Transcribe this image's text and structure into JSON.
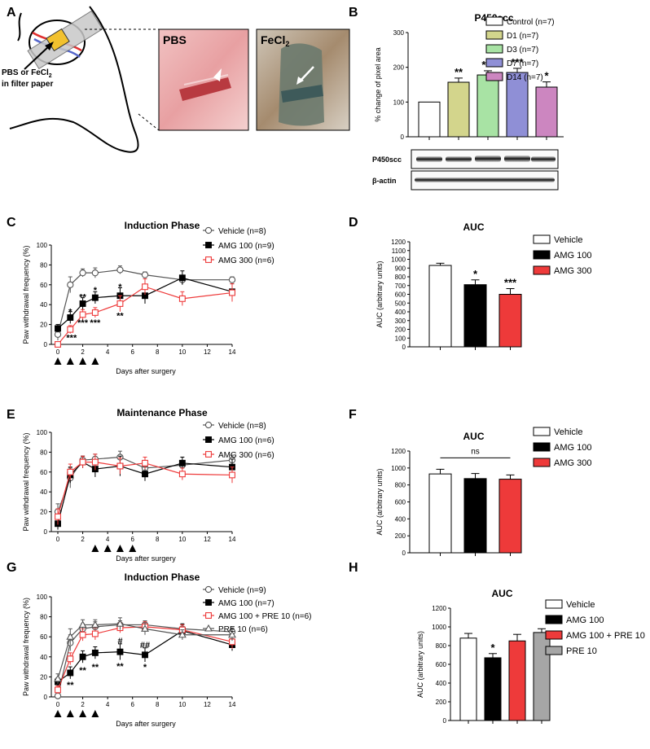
{
  "panel_labels": [
    "A",
    "B",
    "C",
    "D",
    "E",
    "F",
    "G",
    "H"
  ],
  "panel_a": {
    "filter_label_line1": "PBS or FeCl",
    "filter_label_sub": "2",
    "filter_label_line2": "in filter paper",
    "photo1_label": "PBS",
    "photo2_label": "FeCl",
    "photo2_label_sub": "2"
  },
  "panel_b": {
    "blot_labels": [
      "P450scc",
      "β-actin"
    ]
  },
  "colors": {
    "vehicle": "#ffffff",
    "amg100": "#000000",
    "amg300": "#ee3a3a",
    "pre10": "#a6a6a6",
    "d1": "#d3d58c",
    "d3": "#a8e3a4",
    "d7": "#8f8fd6",
    "d14": "#cc86c0"
  },
  "chart_data": [
    {
      "id": "B",
      "type": "bar",
      "title": "P450scc",
      "ylabel": "% change of pixel area",
      "xlabel": "",
      "ylim": [
        0,
        300
      ],
      "yticks": [
        0,
        100,
        200,
        300
      ],
      "categories": [
        "Control (n=7)",
        "D1 (n=7)",
        "D3 (n=7)",
        "D7 (n=7)",
        "D14 (n=7)"
      ],
      "values": [
        100,
        157,
        178,
        185,
        143
      ],
      "errors": [
        0,
        12,
        12,
        12,
        15
      ],
      "fills": [
        "#ffffff",
        "#d3d58c",
        "#a8e3a4",
        "#8f8fd6",
        "#cc86c0"
      ],
      "annotations": [
        "",
        "**",
        "***",
        "***",
        "*"
      ],
      "legend": [
        "Control (n=7)",
        "D1 (n=7)",
        "D3 (n=7)",
        "D7 (n=7)",
        "D14 (n=7)"
      ]
    },
    {
      "id": "C",
      "type": "line",
      "title": "Induction Phase",
      "ylabel": "Paw withdrawal frequency (%)",
      "xlabel": "Days after surgery",
      "xlim": [
        0,
        14
      ],
      "xticks": [
        0,
        2,
        4,
        6,
        8,
        10,
        12,
        14
      ],
      "ylim": [
        0,
        100
      ],
      "yticks": [
        0,
        20,
        40,
        60,
        80,
        100
      ],
      "arrow_days": [
        0,
        1,
        2,
        3
      ],
      "series": [
        {
          "name": "Vehicle (n=8)",
          "marker": "circle",
          "color": "#555555",
          "fill": "#ffffff",
          "x": [
            0,
            1,
            2,
            3,
            5,
            7,
            10,
            14
          ],
          "y": [
            10,
            60,
            72,
            72,
            75,
            70,
            65,
            65
          ],
          "err": [
            6,
            8,
            4,
            5,
            4,
            3,
            4,
            3
          ]
        },
        {
          "name": "AMG 100 (n=9)",
          "marker": "square",
          "color": "#000000",
          "fill": "#000000",
          "x": [
            0,
            1,
            2,
            3,
            5,
            7,
            10,
            14
          ],
          "y": [
            16,
            27,
            41,
            47,
            49,
            49,
            67,
            53
          ],
          "err": [
            4,
            6,
            6,
            6,
            8,
            8,
            7,
            8
          ]
        },
        {
          "name": "AMG 300 (n=6)",
          "marker": "square",
          "color": "#ee3a3a",
          "fill": "#ffffff",
          "x": [
            0,
            1,
            2,
            3,
            5,
            7,
            10,
            14
          ],
          "y": [
            0,
            15,
            30,
            32,
            41,
            58,
            46,
            52
          ],
          "err": [
            1,
            4,
            5,
            5,
            8,
            8,
            7,
            9
          ]
        }
      ],
      "sig_labels": [
        {
          "text": "*",
          "x": 1,
          "y": 33
        },
        {
          "text": "***",
          "x": 1.1,
          "y": 7
        },
        {
          "text": "**",
          "x": 2,
          "y": 48
        },
        {
          "text": "***",
          "x": 2,
          "y": 22
        },
        {
          "text": "*",
          "x": 3,
          "y": 55
        },
        {
          "text": "***",
          "x": 3,
          "y": 22
        },
        {
          "text": "*",
          "x": 5,
          "y": 58
        },
        {
          "text": "**",
          "x": 5,
          "y": 29
        }
      ]
    },
    {
      "id": "D",
      "type": "bar",
      "title": "AUC",
      "ylabel": "AUC (arbitrary units)",
      "xlabel": "",
      "ylim": [
        0,
        1200
      ],
      "yticks": [
        0,
        100,
        200,
        300,
        400,
        500,
        600,
        700,
        800,
        900,
        1000,
        1100,
        1200
      ],
      "categories": [
        "Vehicle",
        "AMG 100",
        "AMG 300"
      ],
      "values": [
        930,
        710,
        600
      ],
      "errors": [
        25,
        55,
        65
      ],
      "fills": [
        "#ffffff",
        "#000000",
        "#ee3a3a"
      ],
      "annotations": [
        "",
        "*",
        "***"
      ],
      "legend": [
        "Vehicle",
        "AMG 100",
        "AMG 300"
      ]
    },
    {
      "id": "E",
      "type": "line",
      "title": "Maintenance Phase",
      "ylabel": "Paw withdrawal frequency (%)",
      "xlabel": "Days after surgery",
      "xlim": [
        0,
        14
      ],
      "xticks": [
        0,
        2,
        4,
        6,
        8,
        10,
        12,
        14
      ],
      "ylim": [
        0,
        100
      ],
      "yticks": [
        0,
        20,
        40,
        60,
        80,
        100
      ],
      "arrow_days": [
        3,
        4,
        5,
        6
      ],
      "series": [
        {
          "name": "Vehicle (n=8)",
          "marker": "circle",
          "color": "#555555",
          "fill": "#ffffff",
          "x": [
            0,
            1,
            2,
            3,
            5,
            7,
            10,
            14
          ],
          "y": [
            20,
            54,
            72,
            73,
            75,
            64,
            67,
            72
          ],
          "err": [
            8,
            10,
            4,
            5,
            6,
            5,
            4,
            5
          ]
        },
        {
          "name": "AMG 100 (n=6)",
          "marker": "square",
          "color": "#000000",
          "fill": "#000000",
          "x": [
            0,
            1,
            2,
            3,
            5,
            7,
            10,
            14
          ],
          "y": [
            8,
            57,
            70,
            63,
            66,
            58,
            69,
            65
          ],
          "err": [
            6,
            8,
            6,
            8,
            10,
            7,
            6,
            8
          ]
        },
        {
          "name": "AMG 300 (n=6)",
          "marker": "square",
          "color": "#ee3a3a",
          "fill": "#ffffff",
          "x": [
            0,
            1,
            2,
            3,
            5,
            7,
            10,
            14
          ],
          "y": [
            15,
            60,
            70,
            70,
            66,
            69,
            58,
            57
          ],
          "err": [
            8,
            8,
            6,
            8,
            8,
            6,
            6,
            8
          ]
        }
      ],
      "sig_labels": []
    },
    {
      "id": "F",
      "type": "bar",
      "title": "AUC",
      "ylabel": "AUC (arbitrary units)",
      "xlabel": "",
      "ylim": [
        0,
        1200
      ],
      "yticks": [
        0,
        200,
        400,
        600,
        800,
        1000,
        1200
      ],
      "categories": [
        "Vehicle",
        "AMG 100",
        "AMG 300"
      ],
      "values": [
        930,
        875,
        868
      ],
      "errors": [
        55,
        60,
        50
      ],
      "fills": [
        "#ffffff",
        "#000000",
        "#ee3a3a"
      ],
      "annotations": [
        "",
        "",
        ""
      ],
      "bracket": {
        "from": 0,
        "to": 2,
        "label": "ns"
      },
      "legend": [
        "Vehicle",
        "AMG 100",
        "AMG 300"
      ]
    },
    {
      "id": "G",
      "type": "line",
      "title": "Induction Phase",
      "ylabel": "Paw withdrawal frequency (%)",
      "xlabel": "Days after surgery",
      "xlim": [
        0,
        14
      ],
      "xticks": [
        0,
        2,
        4,
        6,
        8,
        10,
        12,
        14
      ],
      "ylim": [
        0,
        100
      ],
      "yticks": [
        0,
        20,
        40,
        60,
        80,
        100
      ],
      "arrow_days": [
        0,
        1,
        2,
        3
      ],
      "series": [
        {
          "name": "Vehicle (n=9)",
          "marker": "circle",
          "color": "#555555",
          "fill": "#ffffff",
          "x": [
            0,
            1,
            2,
            3,
            5,
            7,
            10,
            14
          ],
          "y": [
            1,
            54,
            68,
            70,
            72,
            72,
            68,
            65
          ],
          "err": [
            1,
            8,
            5,
            5,
            4,
            4,
            4,
            4
          ]
        },
        {
          "name": "AMG 100 (n=7)",
          "marker": "square",
          "color": "#000000",
          "fill": "#000000",
          "x": [
            0,
            1,
            2,
            3,
            5,
            7,
            10,
            14
          ],
          "y": [
            15,
            24,
            40,
            44,
            45,
            42,
            66,
            52
          ],
          "err": [
            4,
            6,
            6,
            6,
            8,
            7,
            7,
            6
          ]
        },
        {
          "name": "AMG 100 + PRE 10 (n=6)",
          "marker": "square",
          "color": "#ee3a3a",
          "fill": "#ffffff",
          "x": [
            0,
            1,
            2,
            3,
            5,
            7,
            10,
            14
          ],
          "y": [
            7,
            38,
            62,
            63,
            69,
            70,
            67,
            55
          ],
          "err": [
            4,
            6,
            6,
            6,
            5,
            5,
            5,
            7
          ]
        },
        {
          "name": "PRE 10 (n=6)",
          "marker": "triangle",
          "color": "#555555",
          "fill": "#ffffff",
          "x": [
            0,
            1,
            2,
            3,
            5,
            7,
            10,
            14
          ],
          "y": [
            18,
            60,
            72,
            72,
            73,
            68,
            62,
            62
          ],
          "err": [
            5,
            8,
            5,
            5,
            6,
            6,
            5,
            6
          ]
        }
      ],
      "sig_labels": [
        {
          "text": "**",
          "x": 1,
          "y": 12
        },
        {
          "text": "**",
          "x": 2,
          "y": 27
        },
        {
          "text": "**",
          "x": 3,
          "y": 30
        },
        {
          "text": "#",
          "x": 5,
          "y": 56
        },
        {
          "text": "**",
          "x": 5,
          "y": 31
        },
        {
          "text": "##",
          "x": 7,
          "y": 52
        },
        {
          "text": "*",
          "x": 7,
          "y": 30
        }
      ]
    },
    {
      "id": "H",
      "type": "bar",
      "title": "AUC",
      "ylabel": "AUC (arbitrary units)",
      "xlabel": "",
      "ylim": [
        0,
        1200
      ],
      "yticks": [
        0,
        200,
        400,
        600,
        800,
        1000,
        1200
      ],
      "categories": [
        "Vehicle",
        "AMG 100",
        "AMG 100 + PRE 10",
        "PRE 10"
      ],
      "values": [
        880,
        670,
        850,
        940
      ],
      "errors": [
        50,
        45,
        70,
        40
      ],
      "fills": [
        "#ffffff",
        "#000000",
        "#ee3a3a",
        "#a6a6a6"
      ],
      "annotations": [
        "",
        "*",
        "",
        ""
      ],
      "legend": [
        "Vehicle",
        "AMG 100",
        "AMG 100 + PRE 10",
        "PRE 10"
      ]
    }
  ]
}
